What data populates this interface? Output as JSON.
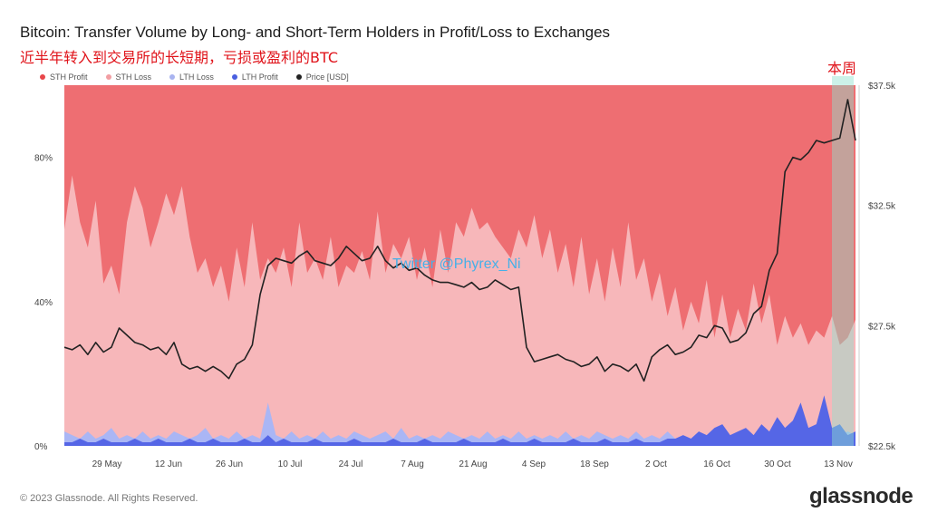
{
  "title": "Bitcoin: Transfer Volume by Long- and Short-Term Holders in Profit/Loss to Exchanges",
  "subtitle": "近半年转入到交易所的长短期，亏损或盈利的BTC",
  "annotation": "本周",
  "watermark": "Twitter @Phyrex_Ni",
  "footer": "© 2023 Glassnode. All Rights Reserved.",
  "brand": "glassnode",
  "legend": [
    {
      "label": "STH Profit",
      "color": "#e8464a"
    },
    {
      "label": "STH Loss",
      "color": "#f29ea3"
    },
    {
      "label": "LTH Loss",
      "color": "#a9b4f0"
    },
    {
      "label": "LTH Profit",
      "color": "#4a5fe0"
    },
    {
      "label": "Price [USD]",
      "color": "#222222"
    }
  ],
  "chart_data": {
    "type": "area",
    "x_ticks": [
      "29 May",
      "12 Jun",
      "26 Jun",
      "10 Jul",
      "24 Jul",
      "7 Aug",
      "21 Aug",
      "4 Sep",
      "18 Sep",
      "2 Oct",
      "16 Oct",
      "30 Oct",
      "13 Nov"
    ],
    "y_left_ticks": [
      "0%",
      "40%",
      "80%"
    ],
    "y_right_ticks": [
      "$22.5k",
      "$27.5k",
      "$32.5k",
      "$37.5k"
    ],
    "y_left_range": [
      0,
      100
    ],
    "y_right_range": [
      22500,
      37500
    ],
    "colors": {
      "sth_profit": "#ee6e72",
      "sth_loss": "#f7b7ba",
      "lth_loss": "#aab6f5",
      "lth_profit": "#5566e6",
      "price": "#222222",
      "highlight": "#8fe3cf"
    },
    "series": [
      {
        "name": "STH Loss",
        "values": [
          60,
          75,
          62,
          55,
          68,
          45,
          50,
          42,
          62,
          72,
          66,
          55,
          62,
          70,
          64,
          72,
          58,
          48,
          52,
          44,
          50,
          40,
          55,
          44,
          62,
          46,
          52,
          48,
          55,
          44,
          62,
          48,
          52,
          46,
          58,
          44,
          50,
          48,
          54,
          46,
          65,
          48,
          56,
          52,
          58,
          46,
          55,
          44,
          60,
          48,
          62,
          58,
          66,
          60,
          62,
          58,
          55,
          52,
          60,
          55,
          64,
          52,
          60,
          48,
          56,
          44,
          58,
          42,
          52,
          40,
          55,
          44,
          62,
          46,
          52,
          40,
          48,
          36,
          44,
          32,
          40,
          34,
          46,
          30,
          42,
          30,
          38,
          32,
          45,
          34,
          42,
          28,
          36,
          30,
          34,
          28,
          32,
          30,
          36,
          28,
          30,
          35
        ]
      },
      {
        "name": "LTH Loss",
        "values": [
          4,
          3,
          2,
          4,
          2,
          3,
          5,
          2,
          3,
          2,
          4,
          2,
          3,
          2,
          4,
          3,
          2,
          3,
          5,
          2,
          3,
          2,
          4,
          2,
          3,
          2,
          12,
          3,
          2,
          4,
          2,
          3,
          2,
          4,
          2,
          3,
          2,
          4,
          3,
          2,
          3,
          4,
          2,
          5,
          2,
          3,
          2,
          3,
          2,
          4,
          3,
          2,
          3,
          2,
          4,
          2,
          3,
          2,
          4,
          2,
          3,
          2,
          3,
          2,
          4,
          2,
          3,
          2,
          4,
          3,
          2,
          3,
          2,
          4,
          2,
          3,
          2,
          4,
          2,
          3,
          2,
          4,
          2,
          3,
          6,
          2,
          3,
          4,
          2,
          5,
          2,
          3,
          4,
          3,
          5,
          3,
          4,
          3,
          4,
          3,
          4,
          3
        ]
      },
      {
        "name": "LTH Profit",
        "values": [
          1,
          1,
          2,
          1,
          1,
          2,
          1,
          1,
          1,
          2,
          1,
          1,
          2,
          1,
          1,
          1,
          2,
          1,
          1,
          2,
          1,
          1,
          1,
          2,
          1,
          1,
          3,
          1,
          2,
          1,
          1,
          1,
          2,
          1,
          1,
          1,
          1,
          2,
          1,
          1,
          1,
          1,
          2,
          1,
          1,
          1,
          2,
          1,
          1,
          1,
          1,
          2,
          1,
          1,
          1,
          1,
          2,
          1,
          1,
          1,
          2,
          1,
          1,
          1,
          1,
          2,
          1,
          1,
          1,
          2,
          1,
          1,
          1,
          2,
          1,
          1,
          1,
          2,
          2,
          3,
          2,
          4,
          3,
          5,
          6,
          3,
          4,
          5,
          3,
          6,
          4,
          8,
          5,
          7,
          12,
          5,
          6,
          14,
          5,
          6,
          3,
          4
        ]
      },
      {
        "name": "Price [USD]",
        "values": [
          26600,
          26500,
          26700,
          26300,
          26800,
          26400,
          26600,
          27400,
          27100,
          26800,
          26700,
          26500,
          26600,
          26300,
          26800,
          25900,
          25700,
          25800,
          25600,
          25800,
          25600,
          25300,
          25900,
          26100,
          26700,
          28800,
          30000,
          30300,
          30200,
          30100,
          30400,
          30600,
          30200,
          30100,
          30000,
          30300,
          30800,
          30500,
          30200,
          30300,
          30800,
          30200,
          29900,
          30100,
          29800,
          29900,
          29600,
          29400,
          29300,
          29300,
          29200,
          29100,
          29300,
          29000,
          29100,
          29400,
          29200,
          29000,
          29100,
          26600,
          26000,
          26100,
          26200,
          26300,
          26100,
          26000,
          25800,
          25900,
          26200,
          25600,
          25900,
          25800,
          25600,
          25900,
          25200,
          26200,
          26500,
          26700,
          26300,
          26400,
          26600,
          27100,
          27000,
          27500,
          27400,
          26800,
          26900,
          27200,
          28000,
          28300,
          29800,
          30500,
          33900,
          34500,
          34400,
          34700,
          35200,
          35100,
          35200,
          35300,
          36900,
          35200
        ]
      }
    ]
  }
}
